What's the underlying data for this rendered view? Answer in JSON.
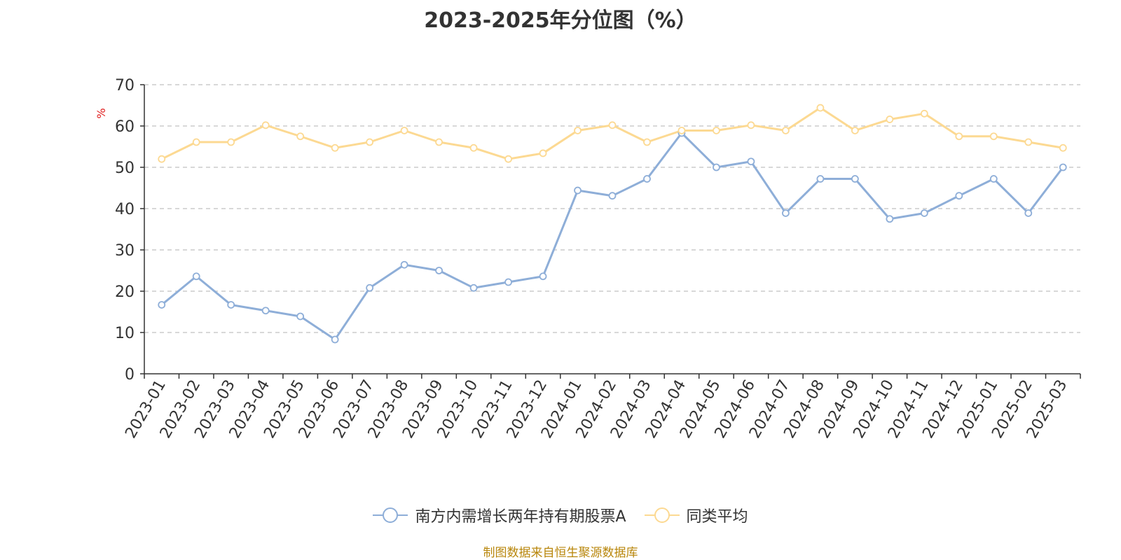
{
  "chart_data": {
    "type": "line",
    "title": "2023-2025年分位图（%）",
    "ylabel": "%",
    "ylim": [
      0,
      70
    ],
    "yticks": [
      0,
      10,
      20,
      30,
      40,
      50,
      60,
      70
    ],
    "grid": true,
    "legend_position": "bottom",
    "categories": [
      "2023-01",
      "2023-02",
      "2023-03",
      "2023-04",
      "2023-05",
      "2023-06",
      "2023-07",
      "2023-08",
      "2023-09",
      "2023-10",
      "2023-11",
      "2023-12",
      "2024-01",
      "2024-02",
      "2024-03",
      "2024-04",
      "2024-05",
      "2024-06",
      "2024-07",
      "2024-08",
      "2024-09",
      "2024-10",
      "2024-11",
      "2024-12",
      "2025-01",
      "2025-02",
      "2025-03"
    ],
    "series": [
      {
        "name": "南方内需增长两年持有期股票A",
        "color": "#8eaed8",
        "values": [
          16.7,
          23.6,
          16.7,
          15.3,
          13.9,
          8.3,
          20.8,
          26.4,
          25.0,
          20.8,
          22.2,
          23.6,
          44.4,
          43.1,
          47.2,
          58.3,
          50.0,
          51.4,
          38.9,
          47.2,
          47.2,
          37.5,
          38.9,
          43.1,
          47.2,
          38.9,
          50.0
        ]
      },
      {
        "name": "同类平均",
        "color": "#fcd992",
        "values": [
          52.0,
          56.1,
          56.1,
          60.2,
          57.5,
          54.7,
          56.1,
          58.9,
          56.1,
          54.7,
          52.0,
          53.4,
          58.9,
          60.2,
          56.1,
          58.9,
          58.9,
          60.2,
          58.9,
          64.4,
          58.9,
          61.6,
          63.0,
          57.5,
          57.5,
          56.1,
          54.7
        ]
      }
    ]
  },
  "footer": {
    "source": "制图数据来自恒生聚源数据库"
  }
}
